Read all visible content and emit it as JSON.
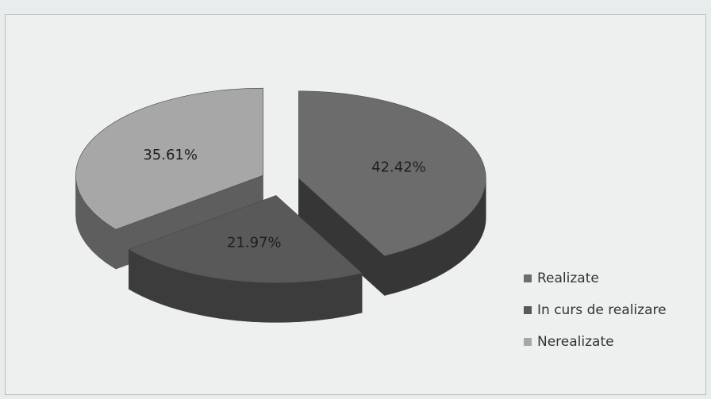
{
  "chart_data": {
    "type": "pie",
    "style": "3d-exploded",
    "legend_position": "right",
    "title": "",
    "slices": [
      {
        "name": "Realizate",
        "value": 42.42,
        "label": "42.42%",
        "color": "#6c6c6c",
        "side_color": "#363636"
      },
      {
        "name": "In curs de realizare",
        "value": 21.97,
        "label": "21.97%",
        "color": "#595959",
        "side_color": "#3c3c3c"
      },
      {
        "name": "Nerealizate",
        "value": 35.61,
        "label": "35.61%",
        "color": "#a7a7a7",
        "side_color": "#5e5e5e"
      }
    ]
  }
}
